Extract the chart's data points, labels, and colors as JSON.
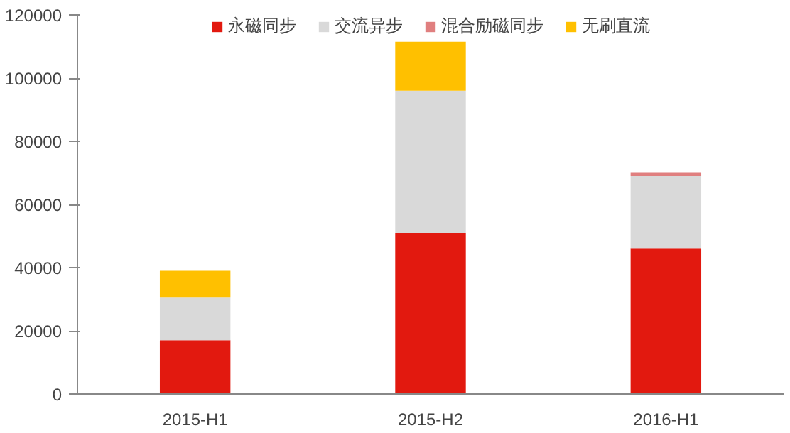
{
  "chart_data": {
    "type": "bar",
    "stacked": true,
    "categories": [
      "2015-H1",
      "2015-H2",
      "2016-H1"
    ],
    "series": [
      {
        "name": "永磁同步",
        "color": "#e2190f",
        "values": [
          17000,
          51000,
          46000
        ]
      },
      {
        "name": "交流异步",
        "color": "#d9d9d9",
        "values": [
          13500,
          45000,
          23000
        ]
      },
      {
        "name": "混合励磁同步",
        "color": "#e07f7f",
        "values": [
          0,
          0,
          1000
        ]
      },
      {
        "name": "无刷直流",
        "color": "#ffc000",
        "values": [
          8500,
          15500,
          0
        ]
      }
    ],
    "ylim": [
      0,
      120000
    ],
    "yticks": [
      0,
      20000,
      40000,
      60000,
      80000,
      100000,
      120000
    ],
    "grid": false,
    "legend": "top"
  }
}
